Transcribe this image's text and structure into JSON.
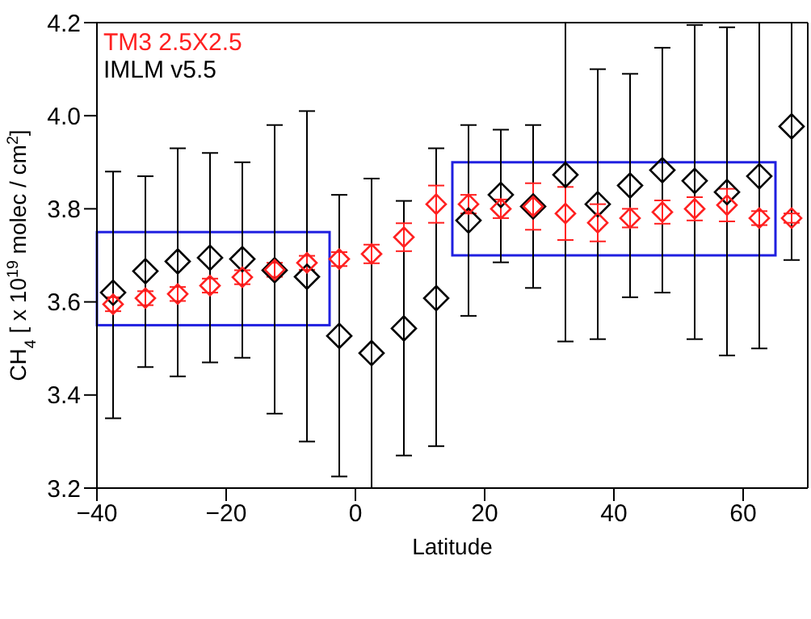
{
  "chart_data": {
    "type": "scatter",
    "xlabel": "Latitude",
    "ylabel": "CH$_{4}$ [ x 10$^{19}$ molec / cm$^{2}$]",
    "xlim": [
      -40,
      70
    ],
    "xticks": [
      -40,
      -20,
      0,
      20,
      40,
      60
    ],
    "ylim": [
      3.2,
      4.2
    ],
    "yticks": [
      {
        "value": 3.2,
        "label": "3.2"
      },
      {
        "value": 3.4,
        "label": "3.4"
      },
      {
        "value": 3.6,
        "label": "3.6"
      },
      {
        "value": 3.8,
        "label": "3.8"
      },
      {
        "value": 4.0,
        "label": "4.0"
      },
      {
        "value": 4.2,
        "label": "4.2"
      }
    ],
    "x": [
      -37.5,
      -32.5,
      -27.5,
      -22.5,
      -17.5,
      -12.5,
      -7.5,
      -2.5,
      2.5,
      7.5,
      12.5,
      17.5,
      22.5,
      27.5,
      32.5,
      37.5,
      42.5,
      47.5,
      52.5,
      57.5,
      62.5,
      67.5
    ],
    "marker": "diamond",
    "legend": "top left",
    "series": [
      {
        "name": "TM3 2.5X2.5",
        "color": "#ff2020",
        "values": [
          3.595,
          3.608,
          3.617,
          3.635,
          3.653,
          3.669,
          3.684,
          3.692,
          3.703,
          3.739,
          3.81,
          3.81,
          3.8,
          3.805,
          3.79,
          3.77,
          3.78,
          3.793,
          3.8,
          3.808,
          3.78,
          3.78
        ],
        "errors": [
          0.015,
          0.015,
          0.015,
          0.015,
          0.015,
          0.015,
          0.015,
          0.015,
          0.02,
          0.03,
          0.04,
          0.02,
          0.02,
          0.05,
          0.057,
          0.04,
          0.02,
          0.025,
          0.025,
          0.035,
          0.015,
          0.01
        ]
      },
      {
        "name": "IMLM v5.5",
        "color": "#000000",
        "values": [
          3.62,
          3.666,
          3.687,
          3.695,
          3.692,
          3.668,
          3.654,
          3.527,
          3.49,
          3.543,
          3.608,
          3.775,
          3.83,
          3.805,
          3.873,
          3.81,
          3.85,
          3.883,
          3.86,
          3.836,
          3.87,
          3.977
        ],
        "errors": [
          [
            3.35,
            3.88
          ],
          [
            3.46,
            3.87
          ],
          [
            3.44,
            3.93
          ],
          [
            3.47,
            3.92
          ],
          [
            3.48,
            3.9
          ],
          [
            3.36,
            3.98
          ],
          [
            3.3,
            4.01
          ],
          [
            3.225,
            3.83
          ],
          [
            3.2,
            3.865
          ],
          [
            3.27,
            3.817
          ],
          [
            3.29,
            3.93
          ],
          [
            3.57,
            3.98
          ],
          [
            3.685,
            3.97
          ],
          [
            3.63,
            3.98
          ],
          [
            3.515,
            4.2
          ],
          [
            3.52,
            4.1
          ],
          [
            3.61,
            4.09
          ],
          [
            3.62,
            4.146
          ],
          [
            3.52,
            4.195
          ],
          [
            3.485,
            4.19
          ],
          [
            3.5,
            4.2
          ],
          [
            3.69,
            4.2
          ]
        ]
      }
    ]
  }
}
